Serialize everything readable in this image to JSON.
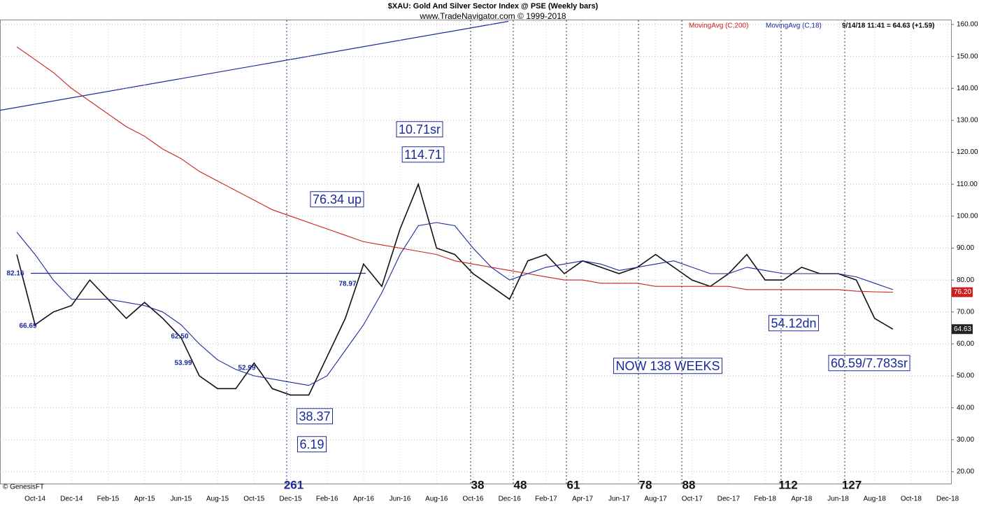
{
  "chart_data": {
    "type": "line",
    "title": "$XAU:  Gold And Silver Sector Index @ PSE  (Weekly bars)",
    "subtitle": "www.TradeNavigator.com © 1999-2018",
    "quote": "9/14/18 11:41 = 64.63 (+1.59)",
    "credit": "© GenesisFT",
    "categories": [
      null,
      "Oct-14",
      null,
      "Dec-14",
      null,
      "Feb-15",
      null,
      "Apr-15",
      null,
      "Jun-15",
      null,
      "Aug-15",
      null,
      "Oct-15",
      null,
      "Dec-15",
      null,
      "Feb-16",
      null,
      "Apr-16",
      null,
      "Jun-16",
      null,
      "Aug-16",
      null,
      "Oct-16",
      null,
      "Dec-16",
      null,
      "Feb-17",
      null,
      "Apr-17",
      null,
      "Jun-17",
      null,
      "Aug-17",
      null,
      "Oct-17",
      null,
      "Dec-17",
      null,
      "Feb-18",
      null,
      "Apr-18",
      null,
      "Jun-18",
      null,
      "Aug-18",
      null,
      "Oct-18",
      null,
      "Dec-18"
    ],
    "series": [
      {
        "name": "$XAU",
        "color": "#111111",
        "values": [
          88,
          66,
          70,
          72,
          80,
          74,
          68,
          73,
          68,
          62,
          50,
          46,
          46,
          54,
          46,
          44,
          44,
          56,
          68,
          85,
          78,
          96,
          110,
          90,
          88,
          82,
          78,
          74,
          86,
          88,
          82,
          86,
          84,
          82,
          84,
          88,
          84,
          80,
          78,
          82,
          88,
          80,
          80,
          84,
          82,
          82,
          80,
          68,
          64.63,
          null,
          null,
          null
        ]
      },
      {
        "name": "MovingAvg (C,200)",
        "color": "#cc2020",
        "values": [
          153,
          149,
          145,
          140,
          136,
          132,
          128,
          125,
          121,
          118,
          114,
          111,
          108,
          105,
          102,
          100,
          98,
          96,
          94,
          92,
          91,
          90,
          89,
          88,
          86,
          85,
          84,
          83,
          82,
          81,
          80,
          80,
          79,
          79,
          79,
          78,
          78,
          78,
          78,
          78,
          77,
          77,
          77,
          77,
          77,
          77,
          76.5,
          76.3,
          76.2,
          null,
          null,
          null
        ]
      },
      {
        "name": "MovingAvg (C,18)",
        "color": "#1a2a9a",
        "values": [
          95,
          88,
          80,
          74,
          74,
          74,
          73,
          72,
          70,
          66,
          60,
          55,
          52,
          50,
          49,
          48,
          47,
          50,
          58,
          66,
          76,
          88,
          97,
          98,
          97,
          90,
          84,
          80,
          82,
          84,
          85,
          86,
          85,
          83,
          84,
          85,
          86,
          84,
          82,
          82,
          84,
          83,
          82,
          82,
          82,
          82,
          81,
          79,
          77,
          null,
          null,
          null
        ]
      }
    ],
    "ylim": [
      15,
      163
    ],
    "yticks": [
      {
        "value": 20,
        "label": "20.00"
      },
      {
        "value": 30,
        "label": "30.00"
      },
      {
        "value": 40,
        "label": "40.00"
      },
      {
        "value": 50,
        "label": "50.00"
      },
      {
        "value": 60,
        "label": "60.00"
      },
      {
        "value": 70,
        "label": "70.00"
      },
      {
        "value": 80,
        "label": "80.00"
      },
      {
        "value": 90,
        "label": "90.00"
      },
      {
        "value": 100,
        "label": "100.00"
      },
      {
        "value": 110,
        "label": "110.00"
      },
      {
        "value": 120,
        "label": "120.00"
      },
      {
        "value": 130,
        "label": "130.00"
      },
      {
        "value": 140,
        "label": "140.00"
      },
      {
        "value": 150,
        "label": "150.00"
      },
      {
        "value": 160,
        "label": "160.00"
      }
    ],
    "grid": true,
    "last_labels": [
      {
        "value": 76.2,
        "label": "76.20",
        "color": "#cc2020"
      },
      {
        "value": 64.63,
        "label": "64.63",
        "color": "#222222"
      }
    ],
    "annotations": [
      "10.71sr",
      "114.71",
      "76.34 up",
      "38.37",
      "6.19",
      "54.12dn",
      "60.59/7.783sr",
      "NOW 138 WEEKS"
    ],
    "level_labels": [
      "82.16",
      "78.97",
      "66.69",
      "62.50",
      "53.99",
      "52.99"
    ],
    "cycle_counts": [
      261,
      38,
      48,
      61,
      78,
      88,
      112,
      127
    ]
  }
}
